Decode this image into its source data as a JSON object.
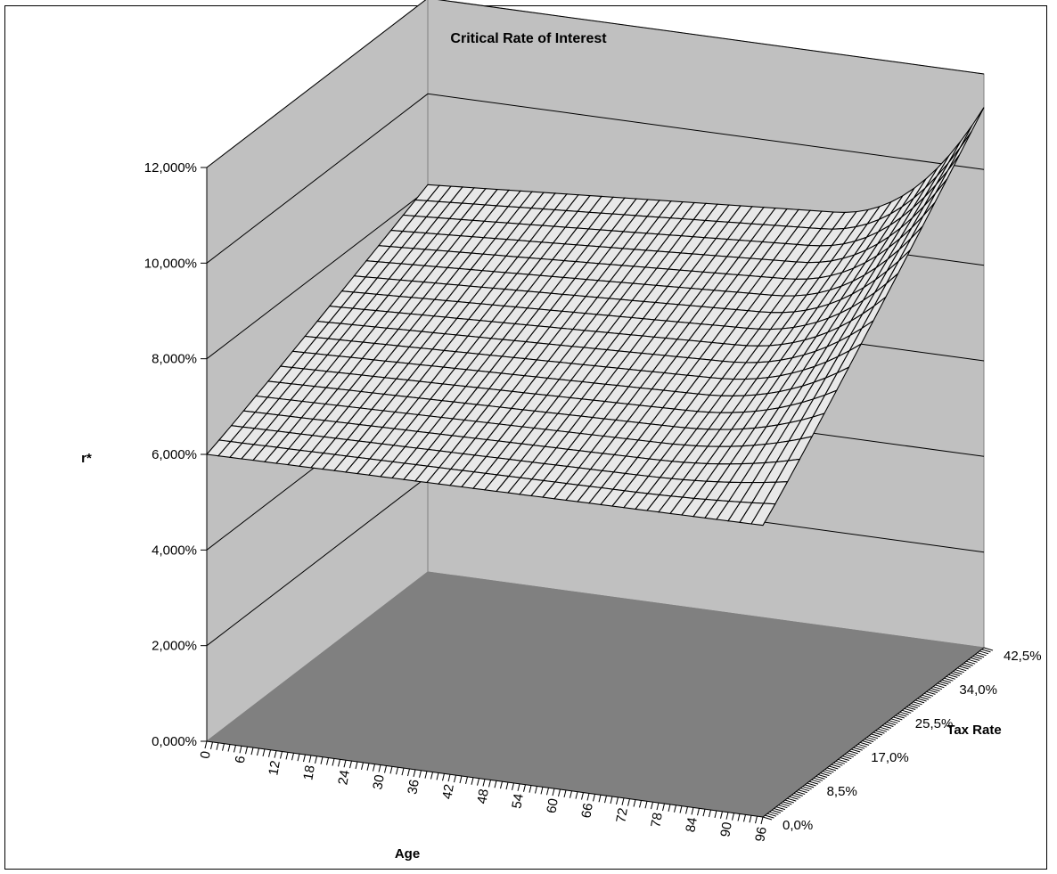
{
  "chart_data": {
    "type": "surface",
    "title": "Critical Rate of Interest",
    "xlabel": "Age",
    "ylabel": "r*",
    "zlabel": "Tax Rate",
    "x_ticks": [
      "0",
      "6",
      "12",
      "18",
      "24",
      "30",
      "36",
      "42",
      "48",
      "54",
      "60",
      "66",
      "72",
      "78",
      "84",
      "90",
      "96"
    ],
    "x_range": [
      0,
      96
    ],
    "tax_ticks": [
      "0,0%",
      "8,5%",
      "17,0%",
      "25,5%",
      "34,0%",
      "42,5%"
    ],
    "tax_range_pct": [
      0,
      42.5
    ],
    "y_ticks": [
      "0,000%",
      "2,000%",
      "4,000%",
      "6,000%",
      "8,000%",
      "10,000%",
      "12,000%"
    ],
    "y_range_pct": [
      0,
      12
    ],
    "grid": true,
    "colors": {
      "wall": "#c0c0c0",
      "floor": "#808080",
      "mesh": "#000000",
      "mesh_fill": "#e8e8e8"
    },
    "surface_corners_pct": [
      {
        "age": 0,
        "tax_pct": 0,
        "r_pct": 6.0
      },
      {
        "age": 0,
        "tax_pct": 42.5,
        "r_pct": 8.1
      },
      {
        "age": 96,
        "tax_pct": 0,
        "r_pct": 6.1
      },
      {
        "age": 96,
        "tax_pct": 42.5,
        "r_pct": 11.3
      }
    ],
    "surface_steepening_from_age": 70
  }
}
